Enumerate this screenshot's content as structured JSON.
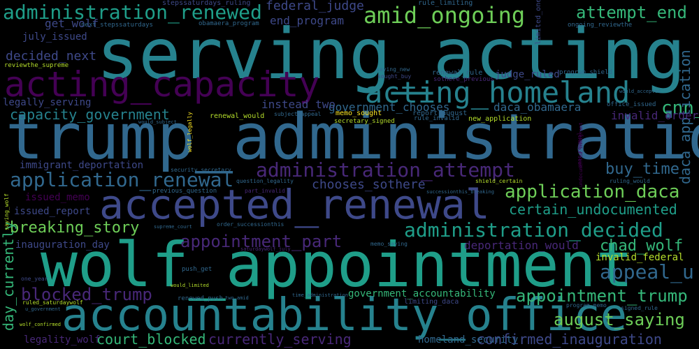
{
  "palette": {
    "background": "#000000",
    "colors": [
      "#440154",
      "#482878",
      "#3e4989",
      "#31688e",
      "#26828e",
      "#1f9e89",
      "#35b779",
      "#6ece58",
      "#b5de2b",
      "#fde725"
    ]
  },
  "words": [
    "serving_acting",
    "trump_administration",
    "wolf_appointment",
    "accountability_office",
    "accepted_renewal",
    "acting_capacity",
    "acting_homeland",
    "administration_renewed",
    "amid_ongoing",
    "administration_attempt",
    "application_renewal",
    "administration_decided",
    "appointment_part",
    "application_daca",
    "appointment_trump",
    "blocked_trump",
    "breaking_story",
    "august_saying",
    "attempt_end",
    "appeal_u",
    "cnn_chad",
    "daca_application",
    "day_currently",
    "capacity_government",
    "certain_undocumented",
    "chad_wolf",
    "court_blocked",
    "currently_serving",
    "confirmed_inauguration",
    "buy_time",
    "decided_next",
    "government_chooses",
    "chooses_sothere",
    "daca_obamaera",
    "federal_judge",
    "end_program",
    "get_wolf",
    "instead_two",
    "invalid_order",
    "deportation_would",
    "invalid_federal",
    "inauguration_day",
    "government_accountability",
    "homeland_security",
    "legality_wolf",
    "issued_report",
    "issued_memo",
    "immigrant_deportation",
    "legally_serving",
    "judge_ruled",
    "july_issued",
    "stepssaturdays_ruling",
    "next_stepssaturdays",
    "obamaera_program",
    "ongoing_reviewthe",
    "rule_limiting",
    "limited_one",
    "reviewthe_supreme",
    "saying_new",
    "sought_buy",
    "renewal_rule",
    "sothere_previous",
    "program_shield",
    "renewal_would",
    "subject_appeal",
    "memo_sought",
    "secretary_signed",
    "report_august",
    "rule_invalid",
    "new_application",
    "office_issued",
    "would_accepted",
    "would_subject",
    "wolf_legally",
    "security_secretary",
    "question_legality",
    "previous_question",
    "part_invalid",
    "shield_certain",
    "ruling_would",
    "successionthis_breaking",
    "undocumented_immigrant",
    "saying_wolf",
    "supreme_court",
    "order_successionthis",
    "memo_saying",
    "saturdaywolf_july",
    "push_get",
    "one_year",
    "ruled_saturdaywolf",
    "u_government",
    "would_limited",
    "renewed_push",
    "two_amid",
    "time_administration",
    "wolf_confirmed",
    "limiting_daca",
    "program_memo",
    "signed_rule",
    "year_renewal"
  ]
}
